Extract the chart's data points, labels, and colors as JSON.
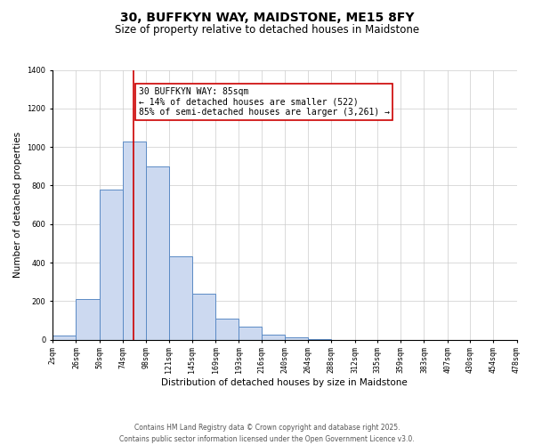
{
  "title": "30, BUFFKYN WAY, MAIDSTONE, ME15 8FY",
  "subtitle": "Size of property relative to detached houses in Maidstone",
  "xlabel": "Distribution of detached houses by size in Maidstone",
  "ylabel": "Number of detached properties",
  "bar_color": "#ccd9f0",
  "bar_edge_color": "#5b8ac5",
  "grid_color": "#cccccc",
  "background_color": "#ffffff",
  "bins": [
    2,
    26,
    50,
    74,
    98,
    121,
    145,
    169,
    193,
    216,
    240,
    264,
    288,
    312,
    335,
    359,
    383,
    407,
    430,
    454,
    478
  ],
  "counts": [
    20,
    210,
    780,
    1030,
    900,
    435,
    240,
    110,
    70,
    25,
    15,
    2,
    0,
    0,
    0,
    0,
    0,
    0,
    0,
    0
  ],
  "red_line_x": 85,
  "annotation_title": "30 BUFFKYN WAY: 85sqm",
  "annotation_line1": "← 14% of detached houses are smaller (522)",
  "annotation_line2": "85% of semi-detached houses are larger (3,261) →",
  "annotation_box_color": "#ffffff",
  "annotation_box_edge": "#cc0000",
  "red_line_color": "#cc0000",
  "ylim": [
    0,
    1400
  ],
  "yticks": [
    0,
    200,
    400,
    600,
    800,
    1000,
    1200,
    1400
  ],
  "xtick_labels": [
    "2sqm",
    "26sqm",
    "50sqm",
    "74sqm",
    "98sqm",
    "121sqm",
    "145sqm",
    "169sqm",
    "193sqm",
    "216sqm",
    "240sqm",
    "264sqm",
    "288sqm",
    "312sqm",
    "335sqm",
    "359sqm",
    "383sqm",
    "407sqm",
    "430sqm",
    "454sqm",
    "478sqm"
  ],
  "footer_line1": "Contains HM Land Registry data © Crown copyright and database right 2025.",
  "footer_line2": "Contains public sector information licensed under the Open Government Licence v3.0.",
  "title_fontsize": 10,
  "subtitle_fontsize": 8.5,
  "axis_label_fontsize": 7.5,
  "tick_fontsize": 6,
  "annotation_fontsize": 7,
  "footer_fontsize": 5.5
}
